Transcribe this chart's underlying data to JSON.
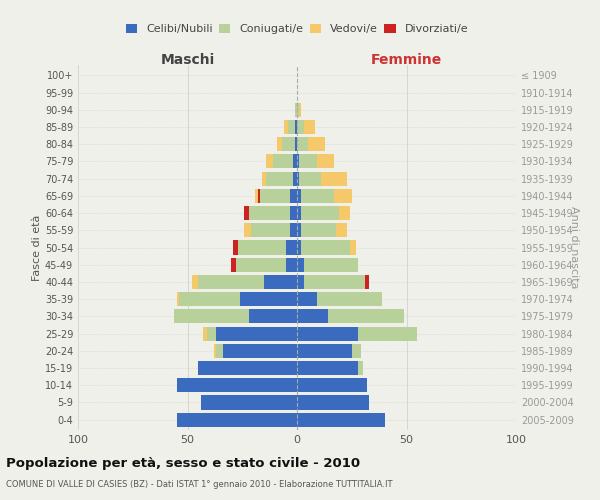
{
  "age_groups": [
    "0-4",
    "5-9",
    "10-14",
    "15-19",
    "20-24",
    "25-29",
    "30-34",
    "35-39",
    "40-44",
    "45-49",
    "50-54",
    "55-59",
    "60-64",
    "65-69",
    "70-74",
    "75-79",
    "80-84",
    "85-89",
    "90-94",
    "95-99",
    "100+"
  ],
  "birth_years": [
    "2005-2009",
    "2000-2004",
    "1995-1999",
    "1990-1994",
    "1985-1989",
    "1980-1984",
    "1975-1979",
    "1970-1974",
    "1965-1969",
    "1960-1964",
    "1955-1959",
    "1950-1954",
    "1945-1949",
    "1940-1944",
    "1935-1939",
    "1930-1934",
    "1925-1929",
    "1920-1924",
    "1915-1919",
    "1910-1914",
    "≤ 1909"
  ],
  "maschi": {
    "celibi": [
      55,
      44,
      55,
      45,
      34,
      37,
      22,
      26,
      15,
      5,
      5,
      3,
      3,
      3,
      2,
      2,
      1,
      1,
      0,
      0,
      0
    ],
    "coniugati": [
      0,
      0,
      0,
      0,
      3,
      4,
      34,
      28,
      30,
      23,
      22,
      18,
      19,
      14,
      12,
      9,
      6,
      3,
      1,
      0,
      0
    ],
    "vedovi": [
      0,
      0,
      0,
      0,
      1,
      2,
      0,
      1,
      3,
      0,
      0,
      3,
      0,
      1,
      2,
      3,
      2,
      2,
      0,
      0,
      0
    ],
    "divorziati": [
      0,
      0,
      0,
      0,
      0,
      0,
      0,
      0,
      0,
      2,
      2,
      0,
      2,
      1,
      0,
      0,
      0,
      0,
      0,
      0,
      0
    ]
  },
  "femmine": {
    "nubili": [
      40,
      33,
      32,
      28,
      25,
      28,
      14,
      9,
      3,
      3,
      2,
      2,
      2,
      2,
      1,
      1,
      0,
      0,
      0,
      0,
      0
    ],
    "coniugate": [
      0,
      0,
      0,
      2,
      4,
      27,
      35,
      30,
      28,
      25,
      22,
      16,
      17,
      15,
      10,
      8,
      5,
      3,
      1,
      0,
      0
    ],
    "vedove": [
      0,
      0,
      0,
      0,
      0,
      0,
      0,
      0,
      0,
      0,
      3,
      5,
      5,
      8,
      12,
      8,
      8,
      5,
      1,
      0,
      0
    ],
    "divorziate": [
      0,
      0,
      0,
      0,
      0,
      0,
      0,
      0,
      2,
      0,
      0,
      0,
      0,
      0,
      0,
      0,
      0,
      0,
      0,
      0,
      0
    ]
  },
  "colors": {
    "celibi_nubili": "#3a6bbf",
    "coniugati": "#b8d09a",
    "vedovi": "#f5c96a",
    "divorziati": "#cc2222"
  },
  "title": "Popolazione per età, sesso e stato civile - 2010",
  "subtitle": "COMUNE DI VALLE DI CASIES (BZ) - Dati ISTAT 1° gennaio 2010 - Elaborazione TUTTITALIA.IT",
  "xlabel_left": "Maschi",
  "xlabel_right": "Femmine",
  "ylabel_left": "Fasce di età",
  "ylabel_right": "Anni di nascita",
  "xlim": 100,
  "background_color": "#f0f0eb"
}
